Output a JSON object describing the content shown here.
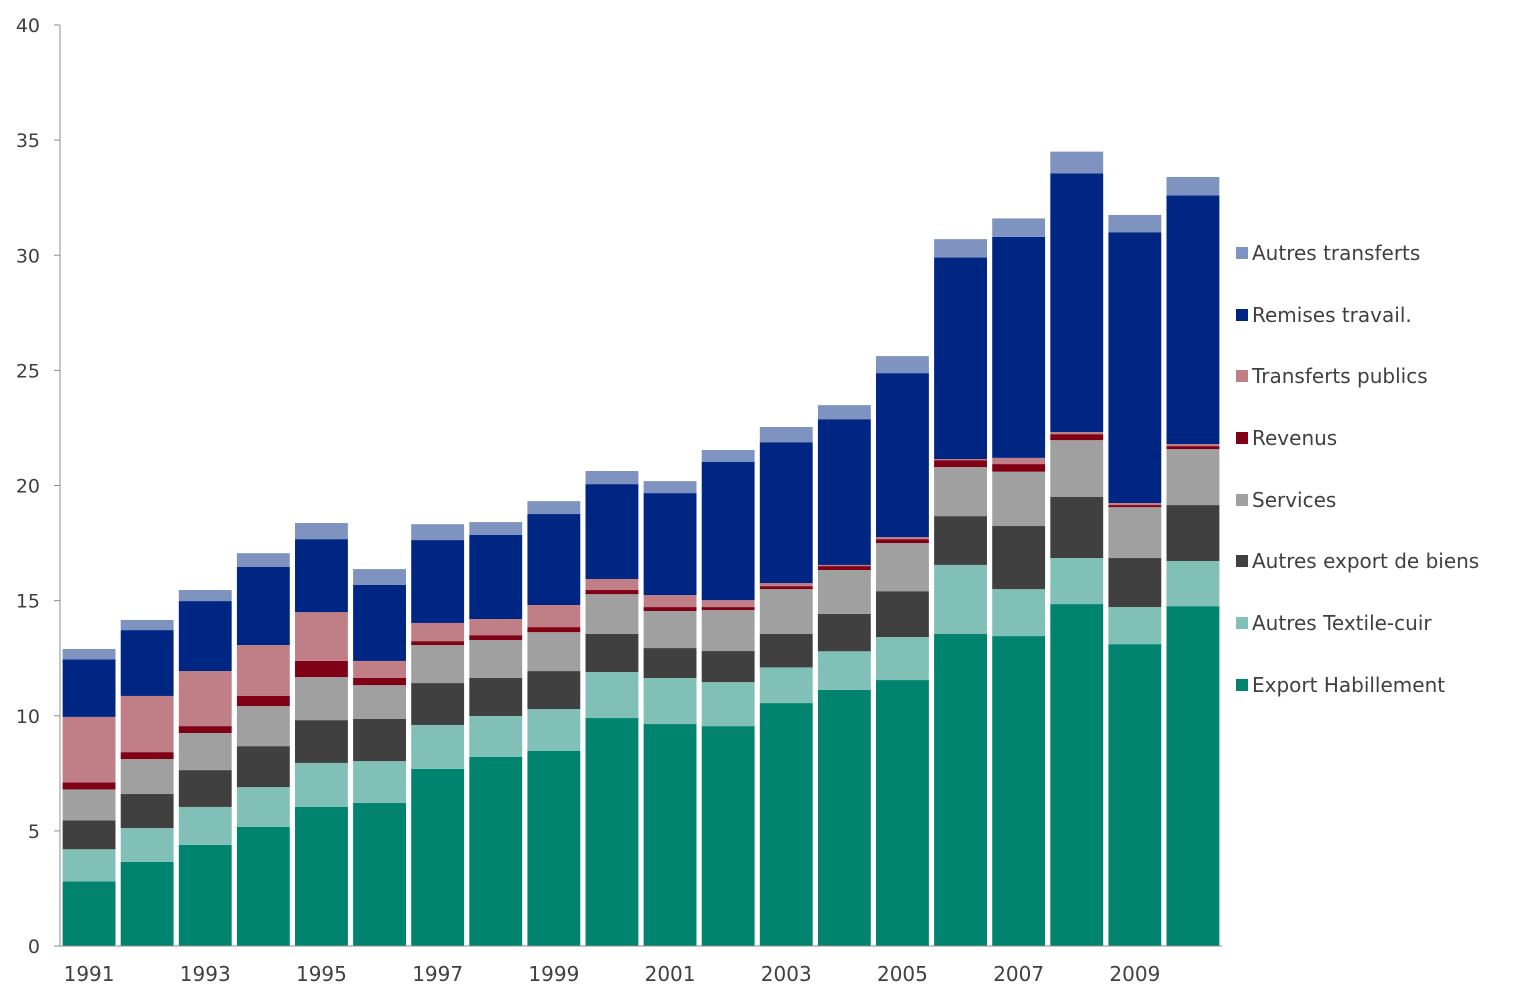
{
  "chart_data": {
    "type": "bar",
    "stacked": true,
    "title": "",
    "xlabel": "",
    "ylabel": "",
    "ylim": [
      0,
      40
    ],
    "yticks": [
      0,
      5,
      10,
      15,
      20,
      25,
      30,
      35,
      40
    ],
    "grid": false,
    "legend_position": "right",
    "categories": [
      "1991",
      "1992",
      "1993",
      "1994",
      "1995",
      "1996",
      "1997",
      "1998",
      "1999",
      "2000",
      "2001",
      "2002",
      "2003",
      "2004",
      "2005",
      "2006",
      "2007",
      "2008",
      "2009",
      "2010"
    ],
    "xtick_labels": [
      "1991",
      "",
      "1993",
      "",
      "1995",
      "",
      "1997",
      "",
      "1999",
      "",
      "2001",
      "",
      "2003",
      "",
      "2005",
      "",
      "2007",
      "",
      "2009",
      ""
    ],
    "series": [
      {
        "name": "Export Habillement",
        "color": "#00836F",
        "values": [
          2.8,
          3.65,
          4.39,
          5.17,
          6.04,
          6.21,
          7.69,
          8.21,
          8.47,
          9.9,
          9.64,
          9.55,
          10.55,
          11.12,
          11.55,
          13.55,
          13.46,
          14.85,
          13.11,
          14.76
        ]
      },
      {
        "name": "Autres Textile-cuir",
        "color": "#80C0B7",
        "values": [
          1.4,
          1.47,
          1.65,
          1.73,
          1.91,
          1.82,
          1.91,
          1.78,
          1.82,
          2.0,
          2.0,
          1.91,
          1.55,
          1.68,
          1.87,
          3.0,
          2.04,
          2.0,
          1.61,
          1.96
        ]
      },
      {
        "name": "Autres export de biens",
        "color": "#404040",
        "values": [
          1.25,
          1.48,
          1.6,
          1.78,
          1.86,
          1.83,
          1.82,
          1.65,
          1.65,
          1.65,
          1.3,
          1.35,
          1.45,
          1.62,
          1.99,
          2.12,
          2.74,
          2.65,
          2.13,
          2.43
        ]
      },
      {
        "name": "Services",
        "color": "#A0A0A0",
        "values": [
          1.35,
          1.52,
          1.61,
          1.74,
          1.87,
          1.47,
          1.65,
          1.65,
          1.69,
          1.73,
          1.61,
          1.78,
          1.95,
          1.91,
          2.09,
          2.13,
          2.36,
          2.47,
          2.21,
          2.43
        ]
      },
      {
        "name": "Revenus",
        "color": "#800016",
        "values": [
          0.3,
          0.3,
          0.3,
          0.44,
          0.7,
          0.31,
          0.17,
          0.21,
          0.22,
          0.18,
          0.17,
          0.13,
          0.13,
          0.17,
          0.17,
          0.3,
          0.33,
          0.26,
          0.09,
          0.13
        ]
      },
      {
        "name": "Transferts publics",
        "color": "#C07F87",
        "values": [
          2.85,
          2.44,
          2.39,
          2.21,
          2.12,
          0.74,
          0.79,
          0.7,
          0.96,
          0.48,
          0.52,
          0.3,
          0.13,
          0.05,
          0.09,
          0.05,
          0.27,
          0.09,
          0.09,
          0.09
        ]
      },
      {
        "name": "Remises travail.",
        "color": "#002683",
        "values": [
          2.5,
          2.86,
          3.04,
          3.39,
          3.17,
          3.3,
          3.6,
          3.65,
          3.95,
          4.12,
          4.43,
          6.0,
          6.12,
          6.33,
          7.12,
          8.75,
          9.6,
          11.23,
          11.76,
          10.8
        ]
      },
      {
        "name": "Autres transferts",
        "color": "#7F93C0",
        "values": [
          0.45,
          0.44,
          0.48,
          0.6,
          0.7,
          0.69,
          0.69,
          0.56,
          0.56,
          0.57,
          0.52,
          0.52,
          0.66,
          0.61,
          0.74,
          0.8,
          0.8,
          0.95,
          0.75,
          0.8
        ]
      }
    ],
    "legend_order": [
      "Autres transferts",
      "Remises travail.",
      "Transferts publics",
      "Revenus",
      "Services",
      "Autres export de biens",
      "Autres Textile-cuir",
      "Export Habillement"
    ]
  }
}
